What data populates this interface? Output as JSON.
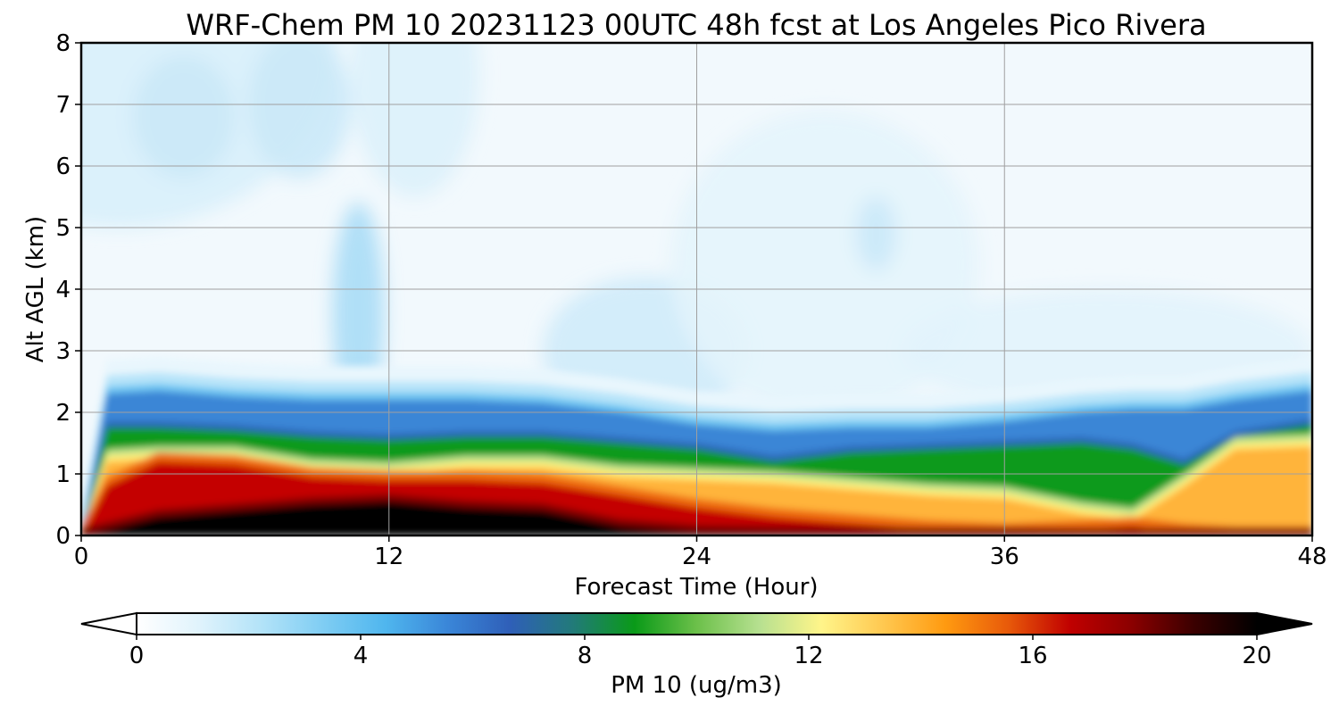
{
  "chart_data": {
    "type": "heatmap",
    "title": "WRF-Chem PM 10  20231123 00UTC 48h fcst at Los Angeles Pico Rivera",
    "xlabel": "Forecast Time (Hour)",
    "ylabel": "Alt AGL (km)",
    "xlim": [
      0,
      48
    ],
    "ylim": [
      0,
      8
    ],
    "x_ticks": [
      "0",
      "12",
      "24",
      "36",
      "48"
    ],
    "y_ticks": [
      "0",
      "1",
      "2",
      "3",
      "4",
      "5",
      "6",
      "7",
      "8"
    ],
    "grid": true,
    "colorbar": {
      "label": "PM 10  (ug/m3)",
      "orientation": "horizontal",
      "range": [
        0,
        20
      ],
      "extend": "both",
      "ticks": [
        "0",
        "4",
        "8",
        "12",
        "16",
        "20"
      ],
      "colors": [
        "#ffffff",
        "#e0f3fc",
        "#b3e3f8",
        "#7fcdf3",
        "#4fb6ee",
        "#3a86d8",
        "#2f5fb8",
        "#227a7a",
        "#0a9a18",
        "#6cc04a",
        "#b6e090",
        "#fff58a",
        "#ffc850",
        "#ff9a10",
        "#e85a0a",
        "#c00000",
        "#8a0000",
        "#3a0000",
        "#000000"
      ]
    },
    "profiles": {
      "description_keys": [
        "hour",
        "black_top_km",
        "red_top_km",
        "orange_top_km",
        "green_top_km",
        "blue_top_km"
      ],
      "hours": [
        0,
        1,
        3,
        6,
        9,
        12,
        15,
        18,
        21,
        24,
        27,
        30,
        33,
        36,
        39,
        41,
        43,
        45,
        48
      ],
      "black_top_km": [
        0.0,
        0.1,
        0.3,
        0.4,
        0.5,
        0.55,
        0.45,
        0.4,
        0.15,
        0.05,
        0.03,
        0.02,
        0.01,
        0.01,
        0.0,
        0.0,
        0.0,
        0.0,
        0.0
      ],
      "red_top_km": [
        0.0,
        0.8,
        1.2,
        1.15,
        0.95,
        0.9,
        0.9,
        0.85,
        0.65,
        0.45,
        0.3,
        0.2,
        0.1,
        0.05,
        0.1,
        0.15,
        0.05,
        0.0,
        0.0
      ],
      "orange_top_km": [
        0.0,
        1.3,
        1.35,
        1.35,
        1.15,
        1.1,
        1.2,
        1.2,
        1.05,
        1.0,
        0.95,
        0.85,
        0.75,
        0.7,
        0.45,
        0.35,
        0.9,
        1.5,
        1.55
      ],
      "green_top_km": [
        0.0,
        1.75,
        1.75,
        1.7,
        1.6,
        1.55,
        1.6,
        1.6,
        1.5,
        1.4,
        1.2,
        1.35,
        1.4,
        1.45,
        1.5,
        1.4,
        1.15,
        1.6,
        1.8
      ],
      "blue_top_km": [
        0.0,
        2.3,
        2.35,
        2.25,
        2.2,
        2.2,
        2.2,
        2.15,
        2.0,
        1.8,
        1.7,
        1.75,
        1.75,
        1.85,
        2.0,
        2.05,
        2.05,
        2.2,
        2.35
      ]
    }
  }
}
